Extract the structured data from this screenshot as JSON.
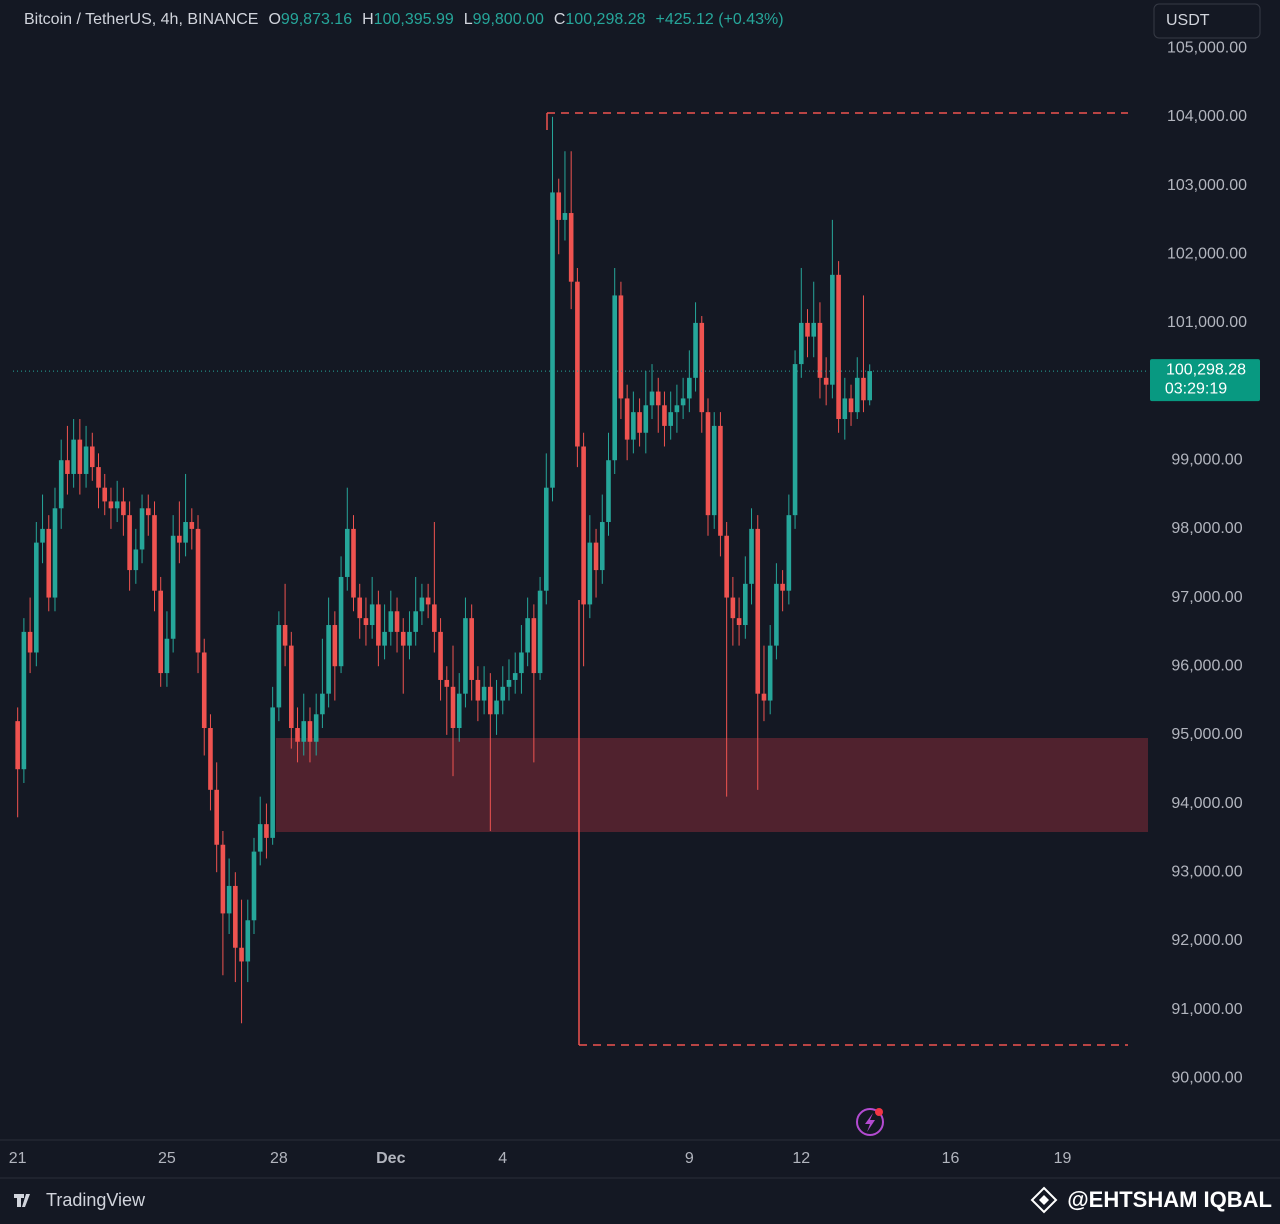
{
  "chart_data": {
    "type": "candlestick",
    "header": {
      "symbol": "Bitcoin / TetherUS, 4h, BINANCE",
      "ohlc": [
        {
          "key": "O",
          "value": "99,873.16"
        },
        {
          "key": "H",
          "value": "100,395.99"
        },
        {
          "key": "L",
          "value": "99,800.00"
        },
        {
          "key": "C",
          "value": "100,298.28"
        }
      ],
      "change": "+425.12 (+0.43%)"
    },
    "currency": "USDT",
    "last_price_label": "100,298.28",
    "countdown": "03:29:19",
    "brand": "TradingView",
    "watermark": "@EHTSHAM IQBAL",
    "up_color": "#26a69a",
    "down_color": "#ef5350",
    "grid": false,
    "xlim": [
      -3,
      727
    ],
    "xticks": [
      {
        "value": 0,
        "label": "21"
      },
      {
        "value": 96,
        "label": "25"
      },
      {
        "value": 168,
        "label": "28"
      },
      {
        "value": 240,
        "label": "Dec"
      },
      {
        "value": 312,
        "label": "4"
      },
      {
        "value": 432,
        "label": "9"
      },
      {
        "value": 504,
        "label": "12"
      },
      {
        "value": 600,
        "label": "16"
      },
      {
        "value": 672,
        "label": "19"
      }
    ],
    "ylim": [
      89100,
      105120
    ],
    "yticks": [
      {
        "value": 90000,
        "label": "90,000.00"
      },
      {
        "value": 91000,
        "label": "91,000.00"
      },
      {
        "value": 92000,
        "label": "92,000.00"
      },
      {
        "value": 93000,
        "label": "93,000.00"
      },
      {
        "value": 94000,
        "label": "94,000.00"
      },
      {
        "value": 95000,
        "label": "95,000.00"
      },
      {
        "value": 96000,
        "label": "96,000.00"
      },
      {
        "value": 97000,
        "label": "97,000.00"
      },
      {
        "value": 98000,
        "label": "98,000.00"
      },
      {
        "value": 99000,
        "label": "99,000.00"
      },
      {
        "value": 101000,
        "label": "101,000.00"
      },
      {
        "value": 102000,
        "label": "102,000.00"
      },
      {
        "value": 103000,
        "label": "103,000.00"
      },
      {
        "value": 104000,
        "label": "104,000.00"
      },
      {
        "value": 105000,
        "label": "105,000.00"
      }
    ],
    "x": [
      0,
      4,
      8,
      12,
      16,
      20,
      24,
      28,
      32,
      36,
      40,
      44,
      48,
      52,
      56,
      60,
      64,
      68,
      72,
      76,
      80,
      84,
      88,
      92,
      96,
      100,
      104,
      108,
      112,
      116,
      120,
      124,
      128,
      132,
      136,
      140,
      144,
      148,
      152,
      156,
      160,
      164,
      168,
      172,
      176,
      180,
      184,
      188,
      192,
      196,
      200,
      204,
      208,
      212,
      216,
      220,
      224,
      228,
      232,
      236,
      240,
      244,
      248,
      252,
      256,
      260,
      264,
      268,
      272,
      276,
      280,
      284,
      288,
      292,
      296,
      300,
      304,
      308,
      312,
      316,
      320,
      324,
      328,
      332,
      336,
      340,
      344,
      348,
      352,
      356,
      360,
      364,
      368,
      372,
      376,
      380,
      384,
      388,
      392,
      396,
      400,
      404,
      408,
      412,
      416,
      420,
      424,
      428,
      432,
      436,
      440,
      444,
      448,
      452,
      456,
      460,
      464,
      468,
      472,
      476,
      480,
      484,
      488,
      492,
      496,
      500,
      504,
      508,
      512,
      516,
      520,
      524,
      528,
      532,
      536,
      540,
      544,
      548
    ],
    "open": [
      95200,
      94500,
      96500,
      96200,
      97800,
      98000,
      97000,
      98300,
      99000,
      98800,
      99300,
      98800,
      99200,
      98900,
      98600,
      98400,
      98300,
      98400,
      98200,
      97400,
      97700,
      98300,
      98200,
      97100,
      95900,
      96400,
      97900,
      97800,
      98100,
      98000,
      96200,
      95100,
      94200,
      93400,
      92400,
      92800,
      91900,
      91700,
      92300,
      93300,
      93700,
      93500,
      95400,
      96600,
      96300,
      95100,
      94900,
      95200,
      94900,
      95300,
      95600,
      96600,
      96000,
      97300,
      98000,
      97000,
      96700,
      96600,
      96900,
      96300,
      96500,
      96800,
      96500,
      96300,
      96500,
      96800,
      97000,
      96900,
      96500,
      95800,
      95700,
      95100,
      95600,
      96700,
      95800,
      95500,
      95700,
      95300,
      95500,
      95700,
      95800,
      95900,
      96200,
      96700,
      95900,
      97100,
      98600,
      102900,
      102500,
      102600,
      101600,
      99200,
      96900,
      97800,
      97400,
      98100,
      99000,
      101400,
      99900,
      99300,
      99700,
      99400,
      99800,
      100000,
      99800,
      99500,
      99700,
      99800,
      99900,
      100200,
      101000,
      99700,
      98200,
      99500,
      97900,
      97000,
      96700,
      96600,
      97200,
      98000,
      95600,
      95500,
      96300,
      97200,
      97100,
      98200,
      100400,
      101000,
      100800,
      101000,
      100200,
      100100,
      101700,
      99600,
      99900,
      99700,
      100200,
      99873.16
    ],
    "high": [
      95400,
      96700,
      97000,
      98100,
      98500,
      98200,
      98600,
      99300,
      99500,
      99600,
      99600,
      99500,
      99400,
      99100,
      98800,
      98600,
      98700,
      98600,
      98400,
      98000,
      98500,
      98500,
      98400,
      97300,
      96800,
      98200,
      98400,
      98800,
      98300,
      98200,
      96400,
      95300,
      94600,
      93600,
      93200,
      93000,
      92600,
      92600,
      93500,
      94100,
      94000,
      95700,
      96800,
      97200,
      96500,
      95400,
      95600,
      95400,
      95600,
      96400,
      97000,
      96800,
      97600,
      98600,
      98200,
      97200,
      97000,
      97300,
      97100,
      96900,
      97100,
      97000,
      96700,
      96800,
      97300,
      97200,
      97200,
      98100,
      96700,
      96000,
      96300,
      95900,
      97000,
      96900,
      96000,
      96000,
      95900,
      95800,
      96000,
      96100,
      96200,
      96600,
      97000,
      96900,
      97300,
      99100,
      104000,
      103100,
      103500,
      103500,
      101800,
      99400,
      98200,
      98000,
      98500,
      99400,
      101800,
      101600,
      100100,
      100000,
      99900,
      100300,
      100400,
      100200,
      100000,
      100000,
      100100,
      100200,
      100600,
      101300,
      101100,
      99900,
      99700,
      99700,
      98100,
      97300,
      97000,
      97600,
      98300,
      98200,
      96300,
      96600,
      97500,
      97400,
      98500,
      100600,
      101800,
      101200,
      101600,
      101300,
      100500,
      102500,
      101900,
      100200,
      100100,
      100500,
      101400,
      100395.99
    ],
    "low": [
      93800,
      94300,
      95900,
      96000,
      97500,
      96800,
      96800,
      98000,
      98500,
      98600,
      98500,
      98600,
      98700,
      98300,
      98200,
      98000,
      98100,
      97900,
      97100,
      97200,
      97500,
      97900,
      96800,
      95700,
      95700,
      96200,
      97500,
      97600,
      97700,
      95900,
      94700,
      93900,
      93000,
      91500,
      92100,
      91400,
      90800,
      91400,
      92100,
      93100,
      93200,
      93400,
      95200,
      96000,
      94800,
      94600,
      94700,
      94600,
      94700,
      95100,
      95400,
      95500,
      95900,
      97100,
      96800,
      96400,
      96300,
      96400,
      96000,
      96100,
      96300,
      96200,
      95600,
      96100,
      96300,
      96600,
      96700,
      96200,
      95500,
      95000,
      94400,
      94900,
      95400,
      95500,
      95200,
      95300,
      93600,
      95000,
      95300,
      95500,
      95600,
      95600,
      96000,
      94600,
      95800,
      96900,
      98400,
      102000,
      102200,
      101200,
      98900,
      96000,
      96700,
      97000,
      97200,
      97900,
      98800,
      99600,
      99000,
      99100,
      99200,
      99100,
      99600,
      99400,
      99200,
      99300,
      99400,
      99600,
      99700,
      100000,
      99400,
      97900,
      98000,
      97600,
      94100,
      96300,
      96300,
      96400,
      96900,
      94200,
      95200,
      95300,
      96100,
      96800,
      96900,
      98000,
      100200,
      100500,
      100500,
      99900,
      99800,
      99900,
      99400,
      99300,
      99500,
      99600,
      99700,
      99800
    ],
    "close": [
      94500,
      96500,
      96200,
      97800,
      98000,
      97000,
      98300,
      99000,
      98800,
      99300,
      98800,
      99200,
      98900,
      98600,
      98400,
      98300,
      98400,
      98200,
      97400,
      97700,
      98300,
      98200,
      97100,
      95900,
      96400,
      97900,
      97800,
      98100,
      98000,
      96200,
      95100,
      94200,
      93400,
      92400,
      92800,
      91900,
      91700,
      92300,
      93300,
      93700,
      93500,
      95400,
      96600,
      96300,
      95100,
      94900,
      95200,
      94900,
      95300,
      95600,
      96600,
      96000,
      97300,
      98000,
      97000,
      96700,
      96600,
      96900,
      96300,
      96500,
      96800,
      96500,
      96300,
      96500,
      96800,
      97000,
      96900,
      96500,
      95800,
      95700,
      95100,
      95600,
      96700,
      95800,
      95500,
      95700,
      95300,
      95500,
      95700,
      95800,
      95900,
      96200,
      96700,
      95900,
      97100,
      98600,
      102900,
      102500,
      102600,
      101600,
      99200,
      96900,
      97800,
      97400,
      98100,
      99000,
      101400,
      99900,
      99300,
      99700,
      99400,
      99800,
      100000,
      99800,
      99500,
      99700,
      99800,
      99900,
      100200,
      101000,
      99700,
      98200,
      99500,
      97900,
      97000,
      96700,
      96600,
      97200,
      98000,
      95600,
      95500,
      96300,
      97200,
      97100,
      98200,
      100400,
      101000,
      100800,
      101000,
      100200,
      100100,
      101700,
      99600,
      99900,
      99700,
      100200,
      99873.16,
      100298.28
    ]
  }
}
